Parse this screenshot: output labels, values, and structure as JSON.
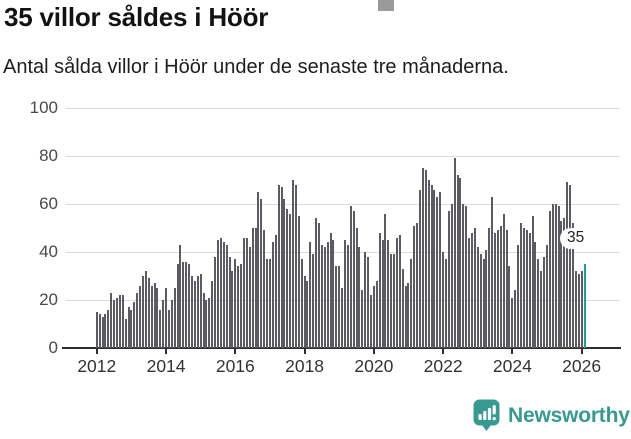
{
  "header": {
    "title": "35 villor såldes i Höör",
    "subtitle": "Antal sålda villor i Höör under de senaste tre månaderna."
  },
  "chart_data": {
    "type": "bar",
    "title": "35 villor såldes i Höör",
    "subtitle": "Antal sålda villor i Höör under de senaste tre månaderna.",
    "x_start": "2012-01",
    "x_end": "2026-02",
    "frequency": "monthly",
    "values": [
      15,
      14,
      13,
      14,
      16,
      23,
      20,
      21,
      22,
      22,
      12,
      17,
      16,
      19,
      23,
      26,
      30,
      32,
      29,
      26,
      27,
      25,
      16,
      20,
      25,
      16,
      20,
      25,
      35,
      43,
      36,
      36,
      35,
      30,
      28,
      30,
      31,
      23,
      20,
      21,
      28,
      38,
      45,
      46,
      44,
      43,
      38,
      32,
      37,
      34,
      35,
      46,
      46,
      42,
      50,
      50,
      65,
      62,
      49,
      37,
      37,
      44,
      47,
      68,
      67,
      62,
      58,
      56,
      70,
      68,
      55,
      37,
      30,
      28,
      44,
      39,
      54,
      52,
      43,
      42,
      44,
      48,
      45,
      34,
      34,
      25,
      45,
      43,
      59,
      57,
      50,
      42,
      24,
      40,
      38,
      22,
      26,
      28,
      48,
      45,
      56,
      45,
      39,
      39,
      46,
      47,
      33,
      26,
      27,
      37,
      51,
      52,
      66,
      75,
      74,
      70,
      68,
      66,
      63,
      65,
      40,
      37,
      57,
      60,
      79,
      72,
      71,
      60,
      59,
      46,
      48,
      50,
      42,
      39,
      37,
      41,
      50,
      63,
      48,
      49,
      51,
      56,
      49,
      34,
      21,
      24,
      43,
      52,
      50,
      49,
      48,
      55,
      44,
      37,
      32,
      38,
      43,
      57,
      60,
      60,
      59,
      53,
      54,
      69,
      68,
      52,
      32,
      31,
      32,
      35
    ],
    "highlight_index_from_end": 1,
    "highlight_label": "35",
    "yticks": [
      0,
      20,
      40,
      60,
      80,
      100
    ],
    "ylim": [
      0,
      100
    ],
    "xticks": [
      "2012",
      "2014",
      "2016",
      "2018",
      "2020",
      "2022",
      "2024",
      "2026"
    ],
    "grid": "horizontal",
    "legend": "none",
    "bar_color": "#5c5b63",
    "highlight_color": "#13a1a1",
    "gridline_color": "#dcdcdc",
    "axis_color": "#2e2e2e"
  },
  "footer": {
    "brand": "Newsworthy",
    "brand_color": "#369a91"
  }
}
